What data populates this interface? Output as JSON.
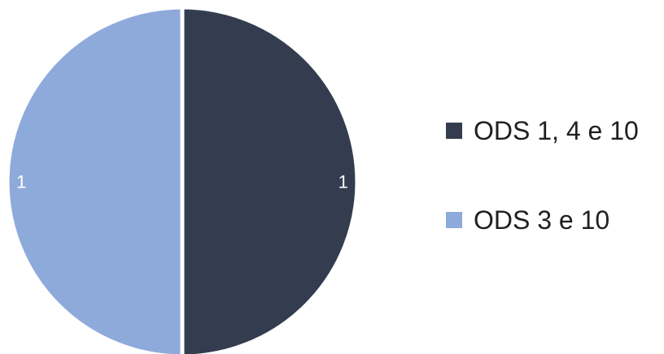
{
  "chart_data": {
    "type": "pie",
    "categories": [
      "ODS 1, 4 e 10",
      "ODS 3 e 10"
    ],
    "values": [
      1,
      1
    ],
    "data_labels": [
      "1",
      "1"
    ],
    "colors": [
      "#333d4f",
      "#8eaadb"
    ],
    "slice_border_color": "#ffffff",
    "start_angle_deg": 0,
    "direction": "clockwise",
    "legend": {
      "position": "right",
      "entries": [
        "ODS 1, 4 e 10",
        "ODS 3 e 10"
      ]
    }
  }
}
